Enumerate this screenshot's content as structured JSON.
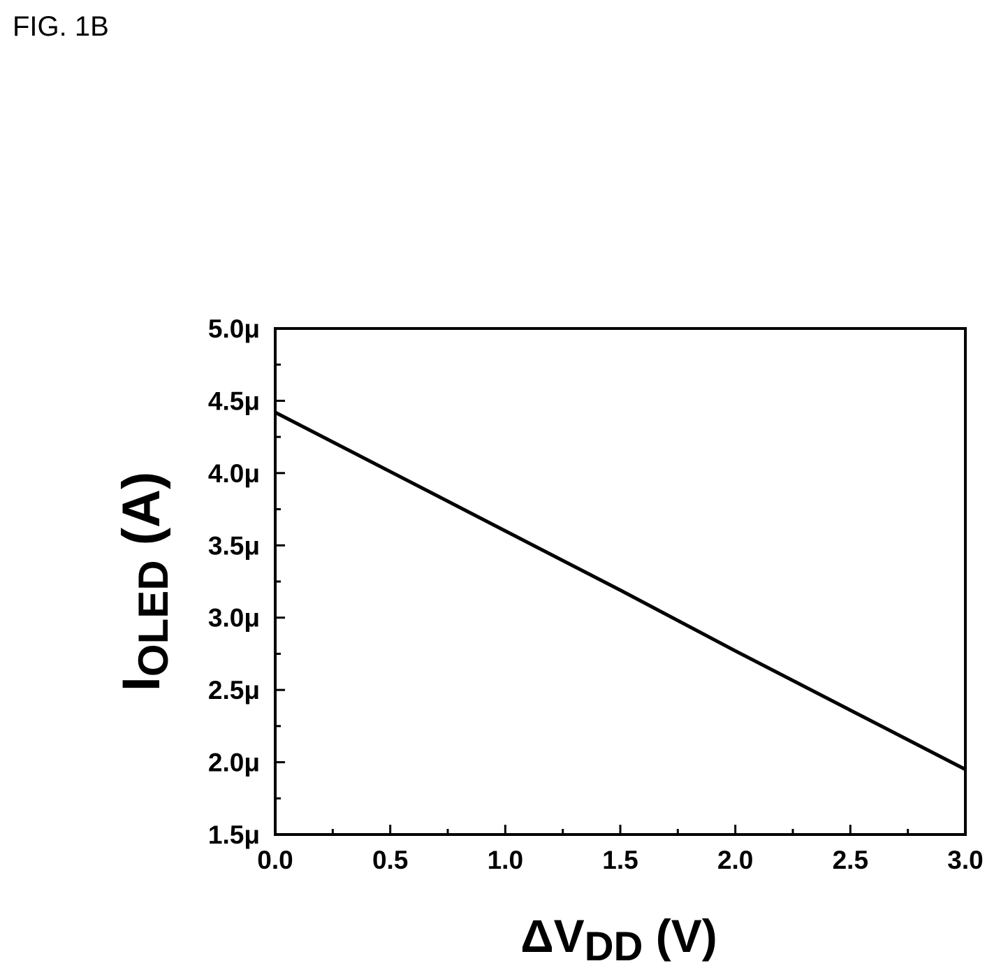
{
  "figure_label": "FIG. 1B",
  "chart_data": {
    "type": "line",
    "title": "",
    "xlabel": {
      "main": "ΔV",
      "sub": "DD",
      "unit": " (V)"
    },
    "ylabel": {
      "main": "I",
      "sub": "OLED",
      "unit": " (A)"
    },
    "xlim": [
      0.0,
      3.0
    ],
    "ylim": [
      1.5,
      5.0
    ],
    "y_unit_suffix": "μ",
    "x_ticks": [
      "0.0",
      "0.5",
      "1.0",
      "1.5",
      "2.0",
      "2.5",
      "3.0"
    ],
    "y_ticks": [
      "1.5μ",
      "2.0μ",
      "2.5μ",
      "3.0μ",
      "3.5μ",
      "4.0μ",
      "4.5μ",
      "5.0μ"
    ],
    "grid": false,
    "legend": "none",
    "series": [
      {
        "x": [
          0.0,
          0.5,
          1.0,
          1.5,
          2.0,
          2.5,
          3.0
        ],
        "y": [
          4.42,
          4.01,
          3.6,
          3.19,
          2.77,
          2.36,
          1.95
        ],
        "color": "#000000"
      }
    ]
  }
}
